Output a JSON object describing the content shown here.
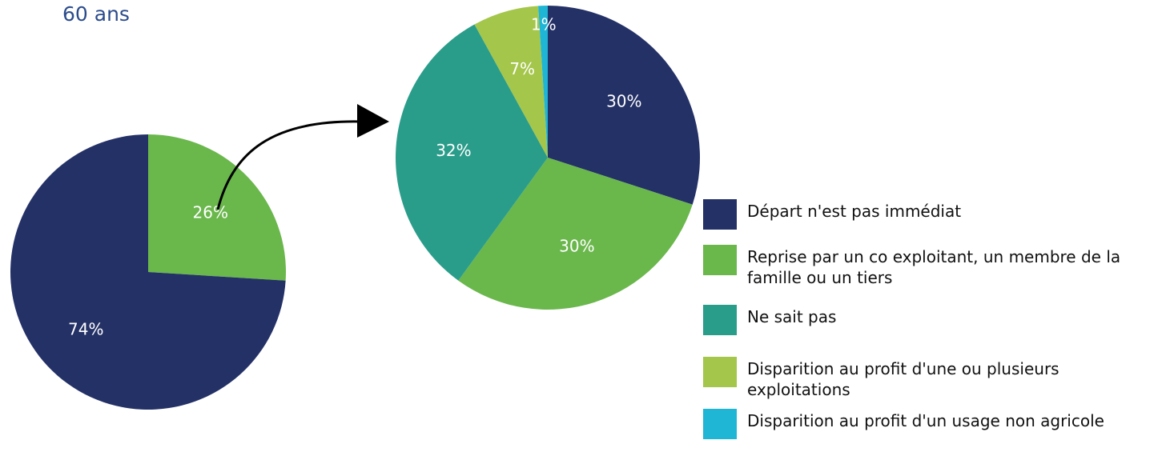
{
  "chart_data": [
    {
      "type": "pie",
      "title": "60 ans",
      "categories": [
        null,
        null
      ],
      "values": [
        26,
        74
      ],
      "value_labels": [
        "26%",
        "74%"
      ],
      "colors": [
        "#6ab74c",
        "#243166"
      ]
    },
    {
      "type": "pie",
      "categories": [
        "Départ n'est pas immédiat",
        "Reprise par un co exploitant, un membre de la famille ou un tiers",
        "Ne sait pas",
        "Disparition au profit d'une ou plusieurs exploitations",
        "Disparition au profit d'un usage non agricole"
      ],
      "values": [
        30,
        30,
        32,
        7,
        1
      ],
      "value_labels": [
        "30%",
        "30%",
        "32%",
        "7%",
        "1%"
      ],
      "colors": [
        "#243166",
        "#6ab74c",
        "#2a9d8a",
        "#a4c64a",
        "#1fb5d4"
      ],
      "legend": "bottom-right"
    }
  ]
}
